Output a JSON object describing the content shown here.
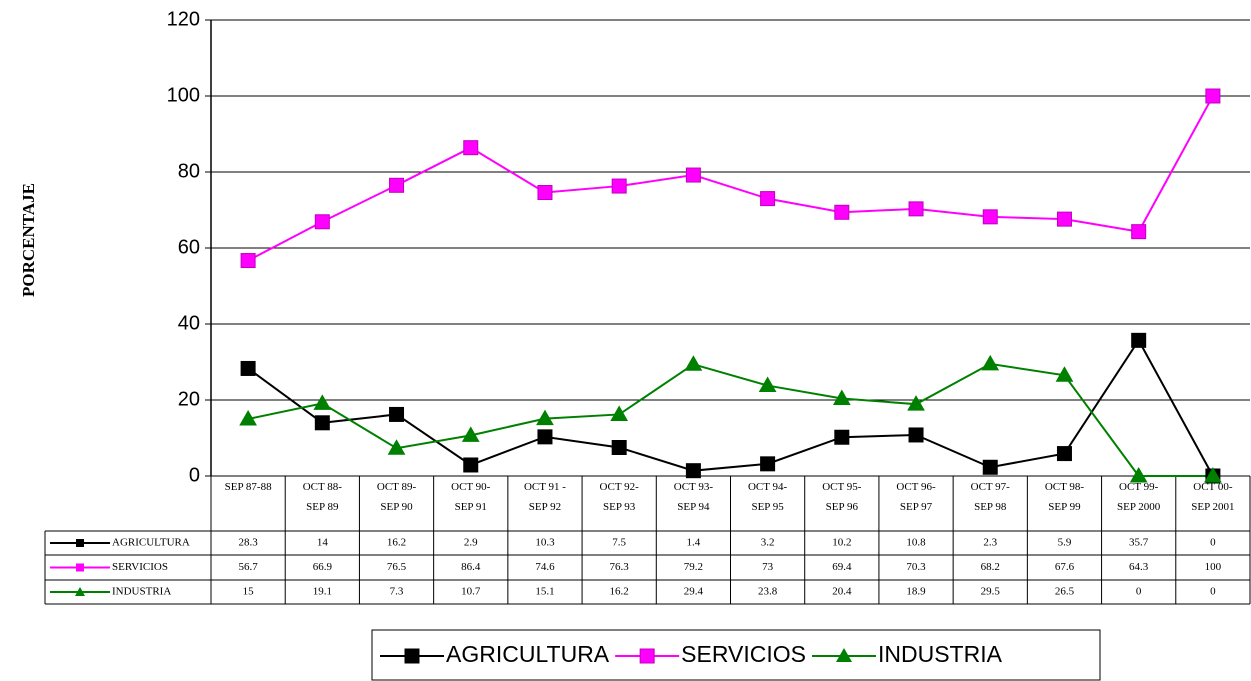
{
  "chart_data": {
    "type": "line",
    "ylabel": "PORCENTAJE",
    "categories": [
      "SEP 87-88",
      "OCT 88-\nSEP 89",
      "OCT 89-\nSEP 90",
      "OCT 90-\nSEP 91",
      "OCT 91 -\nSEP 92",
      "OCT 92-\nSEP 93",
      "OCT 93-\nSEP 94",
      "OCT 94-\nSEP 95",
      "OCT 95-\nSEP 96",
      "OCT 96-\nSEP 97",
      "OCT 97-\nSEP 98",
      "OCT 98-\nSEP 99",
      "OCT 99-\nSEP 2000",
      "OCT 00-\nSEP 2001"
    ],
    "series": [
      {
        "name": "AGRICULTURA",
        "color": "#000000",
        "marker": "square",
        "values": [
          28.3,
          14,
          16.2,
          2.9,
          10.3,
          7.5,
          1.4,
          3.2,
          10.2,
          10.8,
          2.3,
          5.9,
          35.7,
          0
        ]
      },
      {
        "name": "SERVICIOS",
        "color": "#ff00ff",
        "marker": "square",
        "values": [
          56.7,
          66.9,
          76.5,
          86.4,
          74.6,
          76.3,
          79.2,
          73,
          69.4,
          70.3,
          68.2,
          67.6,
          64.3,
          100
        ]
      },
      {
        "name": "INDUSTRIA",
        "color": "#008000",
        "marker": "triangle",
        "values": [
          15,
          19.1,
          7.3,
          10.7,
          15.1,
          16.2,
          29.4,
          23.8,
          20.4,
          18.9,
          29.5,
          26.5,
          0,
          0
        ]
      }
    ],
    "ylim": [
      0,
      120
    ],
    "yticks": [
      0,
      20,
      40,
      60,
      80,
      100,
      120
    ],
    "grid": true,
    "legend": "bottom"
  }
}
